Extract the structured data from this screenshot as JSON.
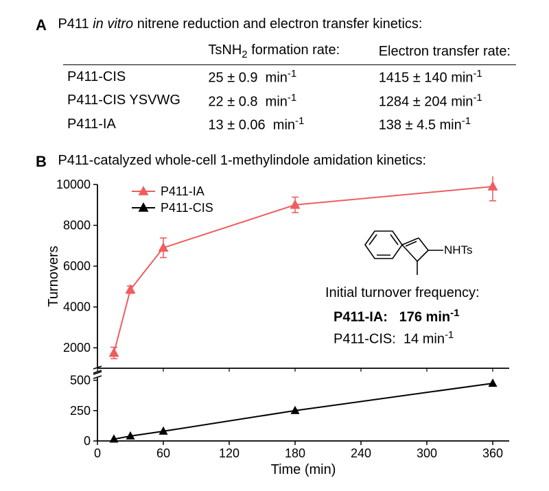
{
  "panelA": {
    "label": "A",
    "title_prefix": "P411 ",
    "title_italic": "in vitro",
    "title_suffix": " nitrene reduction and electron transfer kinetics:",
    "col2_heading_prefix": "TsNH",
    "col2_heading_sub": "2",
    "col2_heading_suffix": " formation rate:",
    "col3_heading": "Electron transfer rate:",
    "rows": [
      {
        "name": "P411-CIS",
        "rate1_val": "25 ± 0.9",
        "rate1_unit": "min",
        "rate2_val": "1415 ± 140",
        "rate2_unit": "min"
      },
      {
        "name": "P411-CIS YSVWG",
        "rate1_val": "22 ± 0.8",
        "rate1_unit": "min",
        "rate2_val": "1284 ± 204",
        "rate2_unit": "min"
      },
      {
        "name": "P411-IA",
        "rate1_val": "13 ± 0.06",
        "rate1_unit": "min",
        "rate2_val": "138 ± 4.5",
        "rate2_unit": "min"
      }
    ]
  },
  "panelB": {
    "label": "B",
    "title": "P411-catalyzed whole-cell 1-methylindole amidation kinetics:",
    "x_axis_label": "Time (min)",
    "y_axis_label": "Turnovers",
    "legend": {
      "seriesA": "P411-IA",
      "seriesB": "P411-CIS"
    },
    "itf_label": "Initial turnover frequency:",
    "itf_rows": [
      {
        "name": "P411-IA:",
        "val": "176 min",
        "bold": true
      },
      {
        "name": "P411-CIS:",
        "val": "14 min",
        "bold": false
      }
    ],
    "molecule_label": "NHTs",
    "chart_top": {
      "ylim": [
        1000,
        10000
      ],
      "yticks": [
        2000,
        4000,
        6000,
        8000,
        10000
      ],
      "xlim": [
        0,
        375
      ],
      "series": {
        "name": "P411-IA",
        "color": "#ef5d5f",
        "marker": "triangle",
        "line_width": 2,
        "points": [
          {
            "x": 15,
            "y": 1750,
            "err": 280
          },
          {
            "x": 30,
            "y": 4850,
            "err": 180
          },
          {
            "x": 60,
            "y": 6900,
            "err": 480
          },
          {
            "x": 180,
            "y": 9000,
            "err": 380
          },
          {
            "x": 360,
            "y": 9900,
            "err": 700
          }
        ]
      }
    },
    "chart_bottom": {
      "ylim": [
        0,
        520
      ],
      "yticks": [
        0,
        250,
        500
      ],
      "xlim": [
        0,
        375
      ],
      "xticks": [
        0,
        60,
        120,
        180,
        240,
        300,
        360
      ],
      "series": {
        "name": "P411-CIS",
        "color": "#000000",
        "marker": "triangle",
        "line_width": 2,
        "points": [
          {
            "x": 15,
            "y": 15
          },
          {
            "x": 30,
            "y": 40
          },
          {
            "x": 60,
            "y": 80
          },
          {
            "x": 180,
            "y": 250
          },
          {
            "x": 360,
            "y": 475
          }
        ]
      }
    },
    "colors": {
      "seriesA": "#ef5d5f",
      "seriesB": "#000000",
      "axis": "#000000",
      "background": "#ffffff"
    },
    "font_sizes": {
      "axis_label": 20,
      "tick": 18,
      "legend": 18
    }
  }
}
